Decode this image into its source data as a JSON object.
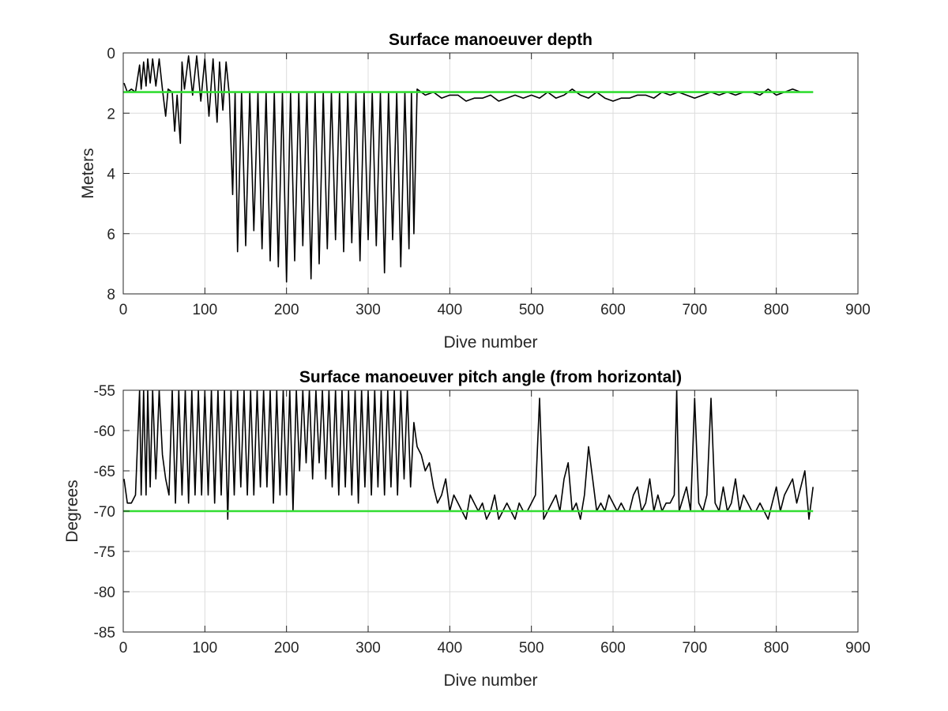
{
  "chart_data": [
    {
      "type": "line",
      "title": "Surface manoeuver depth",
      "xlabel": "Dive number",
      "ylabel": "Meters",
      "xlim": [
        0,
        900
      ],
      "ylim": [
        0,
        8
      ],
      "y_reversed": true,
      "xticks": [
        0,
        100,
        200,
        300,
        400,
        500,
        600,
        700,
        800,
        900
      ],
      "yticks": [
        0,
        2,
        4,
        6,
        8
      ],
      "grid": true,
      "colors": {
        "data": "#000000",
        "reference": "#33dd33"
      },
      "series": [
        {
          "style": "black-line",
          "x": [
            1,
            5,
            10,
            15,
            20,
            22,
            25,
            28,
            30,
            33,
            36,
            40,
            44,
            48,
            52,
            55,
            60,
            63,
            66,
            70,
            72,
            75,
            80,
            85,
            90,
            95,
            100,
            105,
            110,
            115,
            118,
            122,
            126,
            130,
            134,
            137,
            140,
            145,
            150,
            155,
            160,
            165,
            170,
            175,
            180,
            185,
            190,
            195,
            200,
            205,
            210,
            215,
            220,
            225,
            230,
            235,
            240,
            245,
            250,
            255,
            260,
            265,
            270,
            275,
            280,
            285,
            290,
            295,
            300,
            305,
            310,
            315,
            320,
            325,
            330,
            335,
            340,
            345,
            350,
            353,
            356,
            360,
            370,
            380,
            390,
            400,
            410,
            420,
            430,
            440,
            450,
            460,
            470,
            480,
            490,
            500,
            510,
            520,
            530,
            540,
            550,
            560,
            570,
            580,
            590,
            600,
            610,
            620,
            630,
            640,
            650,
            660,
            670,
            680,
            690,
            700,
            710,
            720,
            730,
            740,
            750,
            760,
            770,
            780,
            790,
            800,
            810,
            820,
            830,
            840,
            845
          ],
          "y": [
            1.0,
            1.3,
            1.2,
            1.3,
            0.4,
            1.2,
            0.3,
            1.1,
            0.2,
            1.0,
            0.2,
            1.1,
            0.2,
            1.2,
            2.1,
            1.2,
            1.3,
            2.6,
            1.4,
            3.0,
            0.3,
            1.2,
            0.1,
            1.4,
            0.1,
            1.6,
            0.2,
            2.1,
            0.2,
            2.3,
            0.3,
            1.9,
            0.3,
            1.4,
            4.7,
            1.3,
            6.6,
            1.3,
            6.4,
            1.3,
            5.9,
            1.3,
            6.5,
            1.3,
            6.9,
            1.3,
            7.1,
            1.3,
            7.6,
            1.3,
            6.9,
            1.3,
            6.4,
            1.3,
            7.5,
            1.3,
            7.0,
            1.3,
            6.5,
            1.3,
            6.2,
            1.3,
            6.6,
            1.3,
            6.3,
            1.3,
            6.9,
            1.3,
            6.2,
            1.3,
            6.4,
            1.3,
            7.3,
            1.3,
            6.2,
            1.3,
            7.1,
            1.3,
            6.5,
            1.3,
            6.0,
            1.2,
            1.4,
            1.3,
            1.5,
            1.4,
            1.4,
            1.6,
            1.5,
            1.5,
            1.4,
            1.6,
            1.5,
            1.4,
            1.5,
            1.4,
            1.5,
            1.3,
            1.5,
            1.4,
            1.2,
            1.4,
            1.5,
            1.3,
            1.5,
            1.6,
            1.5,
            1.5,
            1.4,
            1.4,
            1.5,
            1.3,
            1.4,
            1.3,
            1.4,
            1.5,
            1.4,
            1.3,
            1.4,
            1.3,
            1.4,
            1.3,
            1.3,
            1.4,
            1.2,
            1.4,
            1.3,
            1.2,
            1.3,
            1.3,
            1.3
          ]
        },
        {
          "style": "green-reference-line",
          "x": [
            0,
            845
          ],
          "y": [
            1.3,
            1.3
          ]
        }
      ]
    },
    {
      "type": "line",
      "title": "Surface manoeuver pitch angle (from horizontal)",
      "xlabel": "Dive number",
      "ylabel": "Degrees",
      "xlim": [
        0,
        900
      ],
      "ylim": [
        -85,
        -55
      ],
      "xticks": [
        0,
        100,
        200,
        300,
        400,
        500,
        600,
        700,
        800,
        900
      ],
      "yticks": [
        -55,
        -60,
        -65,
        -70,
        -75,
        -80,
        -85
      ],
      "grid": true,
      "colors": {
        "data": "#000000",
        "reference": "#33dd33"
      },
      "series": [
        {
          "style": "black-line",
          "x": [
            1,
            5,
            10,
            15,
            20,
            22,
            25,
            28,
            30,
            33,
            36,
            40,
            44,
            48,
            52,
            56,
            60,
            64,
            68,
            72,
            76,
            80,
            84,
            88,
            92,
            96,
            100,
            104,
            108,
            112,
            116,
            120,
            124,
            128,
            132,
            136,
            140,
            144,
            148,
            152,
            156,
            160,
            164,
            168,
            172,
            176,
            180,
            184,
            188,
            192,
            196,
            200,
            204,
            208,
            212,
            216,
            220,
            224,
            228,
            232,
            236,
            240,
            244,
            248,
            252,
            256,
            260,
            264,
            268,
            272,
            276,
            280,
            284,
            288,
            292,
            296,
            300,
            304,
            308,
            312,
            316,
            320,
            324,
            328,
            332,
            336,
            340,
            344,
            348,
            352,
            356,
            360,
            365,
            370,
            375,
            380,
            385,
            390,
            395,
            400,
            405,
            410,
            415,
            420,
            425,
            430,
            435,
            440,
            445,
            450,
            455,
            460,
            465,
            470,
            475,
            480,
            485,
            490,
            495,
            500,
            505,
            510,
            515,
            520,
            525,
            530,
            535,
            540,
            545,
            550,
            555,
            560,
            565,
            570,
            575,
            580,
            585,
            590,
            595,
            600,
            605,
            610,
            615,
            620,
            625,
            630,
            635,
            640,
            645,
            650,
            655,
            660,
            665,
            670,
            675,
            678,
            681,
            684,
            690,
            695,
            700,
            705,
            710,
            715,
            720,
            725,
            730,
            735,
            740,
            745,
            750,
            755,
            760,
            765,
            770,
            775,
            780,
            785,
            790,
            795,
            800,
            805,
            810,
            815,
            820,
            825,
            830,
            835,
            840,
            845
          ],
          "y": [
            -66,
            -69,
            -69,
            -68,
            -55,
            -68,
            -55,
            -68,
            -55,
            -67,
            -55,
            -66,
            -55,
            -63,
            -66,
            -68,
            -55,
            -69,
            -55,
            -68,
            -55,
            -69,
            -55,
            -68,
            -55,
            -68,
            -55,
            -68,
            -55,
            -69,
            -55,
            -68,
            -55,
            -71,
            -55,
            -68,
            -55,
            -67,
            -55,
            -68,
            -55,
            -68,
            -55,
            -67,
            -55,
            -67,
            -55,
            -69,
            -55,
            -68,
            -55,
            -68,
            -55,
            -70,
            -55,
            -65,
            -55,
            -64,
            -55,
            -66,
            -55,
            -64,
            -55,
            -66,
            -55,
            -67,
            -55,
            -68,
            -55,
            -67,
            -55,
            -68,
            -55,
            -69,
            -55,
            -67,
            -55,
            -68,
            -55,
            -67,
            -55,
            -68,
            -55,
            -67,
            -55,
            -68,
            -55,
            -66,
            -55,
            -67,
            -59,
            -62,
            -63,
            -65,
            -64,
            -67,
            -69,
            -68,
            -66,
            -70,
            -68,
            -69,
            -70,
            -71,
            -68,
            -69,
            -70,
            -69,
            -71,
            -70,
            -68,
            -71,
            -70,
            -69,
            -70,
            -71,
            -69,
            -70,
            -70,
            -69,
            -68,
            -56,
            -71,
            -70,
            -69,
            -68,
            -70,
            -66,
            -64,
            -70,
            -69,
            -71,
            -68,
            -62,
            -66,
            -70,
            -69,
            -70,
            -68,
            -69,
            -70,
            -69,
            -70,
            -70,
            -68,
            -67,
            -70,
            -69,
            -66,
            -70,
            -68,
            -70,
            -69,
            -69,
            -68,
            -55,
            -70,
            -69,
            -67,
            -70,
            -56,
            -69,
            -70,
            -68,
            -56,
            -69,
            -70,
            -67,
            -70,
            -69,
            -66,
            -70,
            -68,
            -69,
            -70,
            -70,
            -69,
            -70,
            -71,
            -69,
            -67,
            -70,
            -68,
            -67,
            -66,
            -69,
            -67,
            -65,
            -71,
            -67
          ]
        },
        {
          "style": "green-reference-line",
          "x": [
            0,
            845
          ],
          "y": [
            -70,
            -70
          ]
        }
      ]
    }
  ]
}
